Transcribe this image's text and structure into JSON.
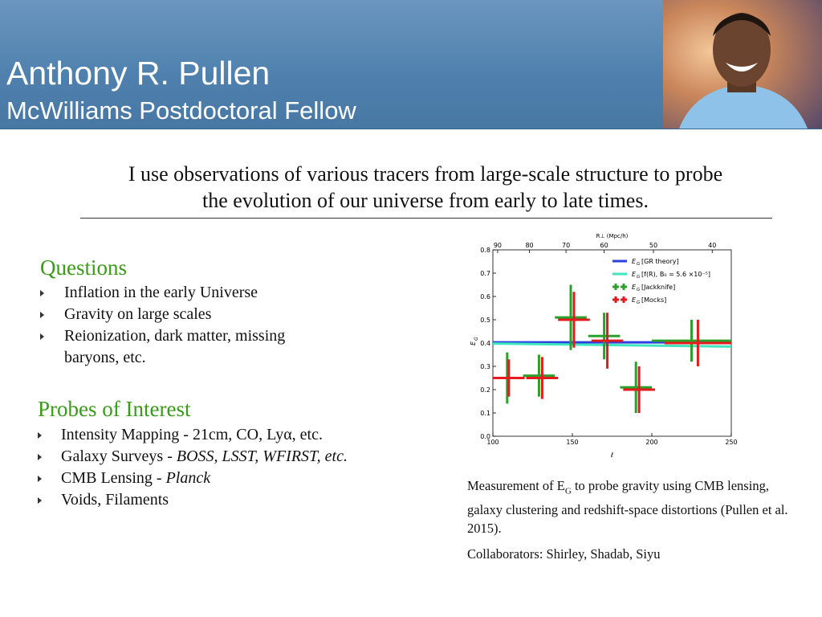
{
  "header": {
    "name": "Anthony R. Pullen",
    "position": "McWilliams Postdoctoral Fellow"
  },
  "intro": [
    "I use observations of various tracers from large-scale structure to probe",
    "the evolution of our universe from early to late times."
  ],
  "questions": {
    "title": "Questions",
    "items": [
      "Inflation in the early Universe",
      "Gravity on large scales",
      "Reionization, dark matter, missing baryons, etc."
    ]
  },
  "probes": {
    "title": "Probes of Interest",
    "items": [
      [
        {
          "text": "Intensity Mapping - 21cm, CO, Lyα, etc."
        }
      ],
      [
        {
          "text": "Galaxy Surveys - "
        },
        {
          "text": "BOSS, LSST, WFIRST, etc.",
          "italic": true
        }
      ],
      [
        {
          "text": "CMB Lensing - "
        },
        {
          "text": "Planck",
          "italic": true
        }
      ],
      [
        {
          "text": "Voids, Filaments"
        }
      ]
    ]
  },
  "caption": [
    "Measurement of E",
    "G",
    " to probe gravity using CMB lensing, galaxy clustering and redshift-space distortions (Pullen et al. 2015)."
  ],
  "collaborators": "Collaborators: Shirley, Shadab, Siyu",
  "chart_data": {
    "type": "errorbar",
    "xlabel": "ℓ",
    "ylabel": "E",
    "ylabel_sub": "G",
    "x2label": "R⊥ (Mpc/h)",
    "xlim": [
      100,
      250
    ],
    "xticks": [
      100,
      150,
      200,
      250
    ],
    "ylim": [
      0,
      0.8
    ],
    "yticks": [
      {
        "value": 0,
        "label": "0.0"
      },
      0.1,
      0.2,
      0.3,
      0.4,
      0.5,
      0.6,
      0.7,
      0.8
    ],
    "x2ticks": [
      {
        "value": 103,
        "label": "90"
      },
      {
        "value": 123,
        "label": "80"
      },
      {
        "value": 146,
        "label": "70"
      },
      {
        "value": 170,
        "label": "60"
      },
      {
        "value": 201,
        "label": "50"
      },
      {
        "value": 238,
        "label": "40"
      }
    ],
    "legend_symbol": "E",
    "legend_symbol_sub": "G",
    "legend": "upper right",
    "lines": [
      {
        "name": "[GR theory]",
        "color": "#2a3fe0",
        "x": [
          100,
          250
        ],
        "values": [
          0.403,
          0.403
        ]
      },
      {
        "name": "[f(R), B₀ = 5.6 ×10⁻⁵]",
        "color": "#40e6c0",
        "x": [
          100,
          250
        ],
        "values": [
          0.398,
          0.385
        ]
      }
    ],
    "series": [
      {
        "name": "[Jackknife]",
        "color": "#2ca02c",
        "x": [
          109,
          129,
          149,
          170,
          190,
          225
        ],
        "xerr": [
          9,
          10,
          10,
          10,
          10,
          25
        ],
        "values": [
          0.25,
          0.26,
          0.51,
          0.43,
          0.21,
          0.41
        ],
        "yerr": [
          0.11,
          0.09,
          0.14,
          0.1,
          0.11,
          0.09
        ]
      },
      {
        "name": "[Mocks]",
        "color": "#e41a1c",
        "x": [
          110,
          131,
          151,
          172,
          192,
          229
        ],
        "xerr": [
          10,
          10,
          10,
          10,
          10,
          21
        ],
        "values": [
          0.25,
          0.25,
          0.5,
          0.41,
          0.2,
          0.4
        ],
        "yerr": [
          0.08,
          0.09,
          0.12,
          0.12,
          0.1,
          0.1
        ]
      }
    ]
  }
}
